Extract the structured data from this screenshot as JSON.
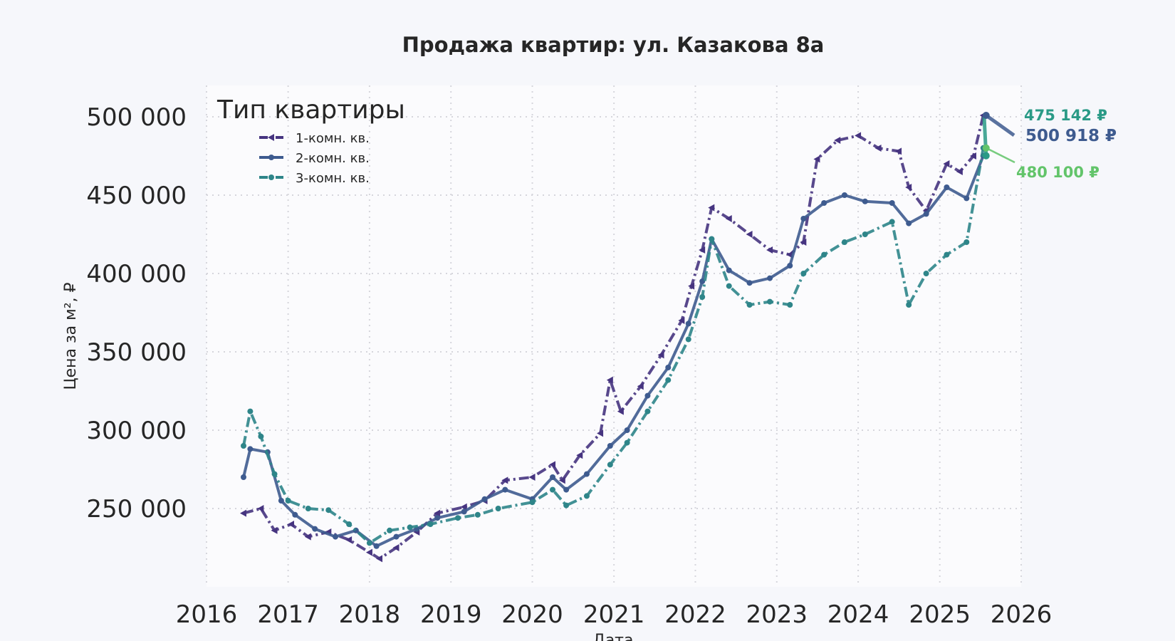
{
  "chart_data": {
    "type": "line",
    "title": "Продажа квартир: ул. Казакова 8а",
    "xlabel": "Дата",
    "ylabel": "Цена за м², ₽",
    "xlim": [
      "2016-01-01",
      "2026-01-01"
    ],
    "ylim": [
      200000,
      520000
    ],
    "x_ticks": [
      "2016",
      "2017",
      "2018",
      "2019",
      "2020",
      "2021",
      "2022",
      "2023",
      "2024",
      "2025",
      "2026"
    ],
    "y_ticks": [
      {
        "value": 250000,
        "label": "250 000"
      },
      {
        "value": 300000,
        "label": "300 000"
      },
      {
        "value": 350000,
        "label": "350 000"
      },
      {
        "value": 400000,
        "label": "400 000"
      },
      {
        "value": 450000,
        "label": "450 000"
      },
      {
        "value": 500000,
        "label": "500 000"
      }
    ],
    "grid": true,
    "legend": {
      "title": "Тип квартиры",
      "position": "top-left"
    },
    "series": [
      {
        "name": "1-комн. кв.",
        "color": "#463480",
        "marker": "triangle",
        "dash": "dashdot",
        "points": [
          [
            "2016-06-15",
            247000
          ],
          [
            "2016-09-01",
            250000
          ],
          [
            "2016-11-01",
            236000
          ],
          [
            "2017-01-15",
            240000
          ],
          [
            "2017-04-01",
            232000
          ],
          [
            "2017-07-01",
            235000
          ],
          [
            "2017-10-01",
            230000
          ],
          [
            "2018-01-01",
            222000
          ],
          [
            "2018-02-15",
            218000
          ],
          [
            "2018-05-01",
            225000
          ],
          [
            "2018-08-01",
            235000
          ],
          [
            "2018-11-01",
            247000
          ],
          [
            "2019-03-01",
            251000
          ],
          [
            "2019-06-01",
            255000
          ],
          [
            "2019-09-01",
            268000
          ],
          [
            "2020-01-01",
            270000
          ],
          [
            "2020-04-01",
            278000
          ],
          [
            "2020-05-15",
            268000
          ],
          [
            "2020-08-01",
            284000
          ],
          [
            "2020-11-01",
            298000
          ],
          [
            "2020-12-15",
            332000
          ],
          [
            "2021-02-01",
            312000
          ],
          [
            "2021-05-01",
            328000
          ],
          [
            "2021-08-01",
            348000
          ],
          [
            "2021-11-01",
            370000
          ],
          [
            "2021-12-15",
            392000
          ],
          [
            "2022-02-01",
            415000
          ],
          [
            "2022-03-15",
            442000
          ],
          [
            "2022-06-01",
            435000
          ],
          [
            "2022-09-01",
            425000
          ],
          [
            "2022-12-01",
            415000
          ],
          [
            "2023-03-01",
            412000
          ],
          [
            "2023-05-01",
            420000
          ],
          [
            "2023-07-01",
            473000
          ],
          [
            "2023-10-01",
            485000
          ],
          [
            "2024-01-01",
            488000
          ],
          [
            "2024-04-01",
            480000
          ],
          [
            "2024-07-01",
            478000
          ],
          [
            "2024-08-15",
            455000
          ],
          [
            "2024-11-01",
            440000
          ],
          [
            "2025-02-01",
            470000
          ],
          [
            "2025-04-01",
            465000
          ],
          [
            "2025-06-01",
            475000
          ],
          [
            "2025-07-15",
            500918
          ]
        ]
      },
      {
        "name": "2-комн. кв.",
        "color": "#3e5b8f",
        "marker": "circle",
        "dash": "solid",
        "points": [
          [
            "2016-06-15",
            270000
          ],
          [
            "2016-07-15",
            288000
          ],
          [
            "2016-10-01",
            286000
          ],
          [
            "2016-12-01",
            255000
          ],
          [
            "2017-02-01",
            246000
          ],
          [
            "2017-05-01",
            237000
          ],
          [
            "2017-08-01",
            232000
          ],
          [
            "2017-11-01",
            236000
          ],
          [
            "2018-02-01",
            226000
          ],
          [
            "2018-05-01",
            232000
          ],
          [
            "2018-08-01",
            237000
          ],
          [
            "2018-11-01",
            244000
          ],
          [
            "2019-03-01",
            248000
          ],
          [
            "2019-06-01",
            256000
          ],
          [
            "2019-09-01",
            262000
          ],
          [
            "2020-01-01",
            256000
          ],
          [
            "2020-04-01",
            270000
          ],
          [
            "2020-06-01",
            262000
          ],
          [
            "2020-09-01",
            272000
          ],
          [
            "2020-12-15",
            290000
          ],
          [
            "2021-03-01",
            300000
          ],
          [
            "2021-06-01",
            322000
          ],
          [
            "2021-09-01",
            340000
          ],
          [
            "2021-12-01",
            368000
          ],
          [
            "2022-02-01",
            395000
          ],
          [
            "2022-03-15",
            422000
          ],
          [
            "2022-06-01",
            402000
          ],
          [
            "2022-09-01",
            394000
          ],
          [
            "2022-12-01",
            397000
          ],
          [
            "2023-03-01",
            405000
          ],
          [
            "2023-05-01",
            435000
          ],
          [
            "2023-08-01",
            445000
          ],
          [
            "2023-11-01",
            450000
          ],
          [
            "2024-02-01",
            446000
          ],
          [
            "2024-06-01",
            445000
          ],
          [
            "2024-08-15",
            432000
          ],
          [
            "2024-11-01",
            438000
          ],
          [
            "2025-02-01",
            455000
          ],
          [
            "2025-05-01",
            448000
          ],
          [
            "2025-07-15",
            475142
          ]
        ]
      },
      {
        "name": "3-комн. кв.",
        "color": "#2e8589",
        "marker": "circle",
        "dash": "dashdot",
        "points": [
          [
            "2016-06-15",
            290000
          ],
          [
            "2016-07-15",
            312000
          ],
          [
            "2016-09-01",
            296000
          ],
          [
            "2016-11-01",
            272000
          ],
          [
            "2017-01-01",
            255000
          ],
          [
            "2017-04-01",
            250000
          ],
          [
            "2017-07-01",
            249000
          ],
          [
            "2017-10-01",
            240000
          ],
          [
            "2018-01-01",
            228000
          ],
          [
            "2018-04-01",
            236000
          ],
          [
            "2018-07-01",
            238000
          ],
          [
            "2018-10-01",
            240000
          ],
          [
            "2019-02-01",
            244000
          ],
          [
            "2019-05-01",
            246000
          ],
          [
            "2019-08-01",
            250000
          ],
          [
            "2020-01-01",
            254000
          ],
          [
            "2020-04-01",
            262000
          ],
          [
            "2020-06-01",
            252000
          ],
          [
            "2020-09-01",
            258000
          ],
          [
            "2020-12-15",
            278000
          ],
          [
            "2021-03-01",
            292000
          ],
          [
            "2021-06-01",
            312000
          ],
          [
            "2021-09-01",
            332000
          ],
          [
            "2021-12-01",
            358000
          ],
          [
            "2022-02-01",
            385000
          ],
          [
            "2022-03-15",
            422000
          ],
          [
            "2022-06-01",
            392000
          ],
          [
            "2022-09-01",
            380000
          ],
          [
            "2022-12-01",
            382000
          ],
          [
            "2023-03-01",
            380000
          ],
          [
            "2023-05-01",
            400000
          ],
          [
            "2023-08-01",
            412000
          ],
          [
            "2023-11-01",
            420000
          ],
          [
            "2024-02-01",
            425000
          ],
          [
            "2024-06-01",
            433000
          ],
          [
            "2024-08-15",
            380000
          ],
          [
            "2024-11-01",
            400000
          ],
          [
            "2025-02-01",
            412000
          ],
          [
            "2025-05-01",
            420000
          ],
          [
            "2025-07-15",
            480100
          ]
        ]
      }
    ],
    "annotations": [
      {
        "text": "475 142 ₽",
        "color": "#2a9a86"
      },
      {
        "text": "500 918 ₽",
        "color": "#3e5b8f"
      },
      {
        "text": "480 100 ₽",
        "color": "#62c46a"
      }
    ]
  }
}
